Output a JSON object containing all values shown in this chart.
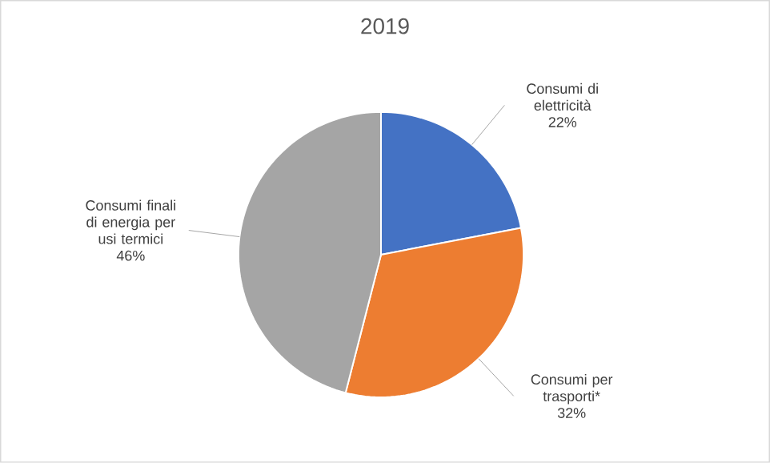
{
  "chart_data": {
    "type": "pie",
    "title": "2019",
    "categories": [
      "Consumi di elettricità",
      "Consumi per trasporti*",
      "Consumi finali di energia per usi termici"
    ],
    "values": [
      22,
      32,
      46
    ],
    "value_labels": [
      "22%",
      "32%",
      "46%"
    ],
    "colors": [
      "#4472c4",
      "#ed7d31",
      "#a5a5a5"
    ]
  }
}
